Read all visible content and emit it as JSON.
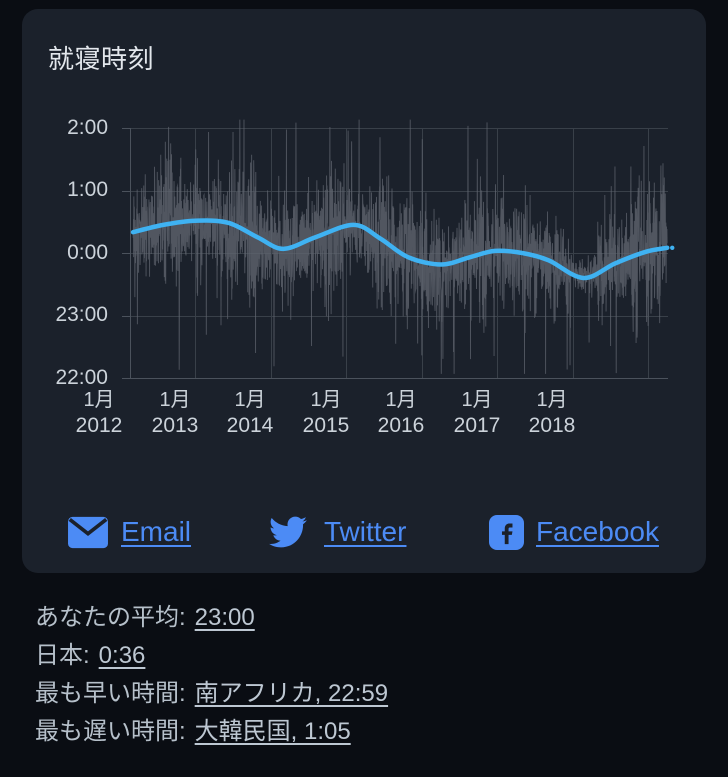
{
  "card": {
    "title": "就寝時刻",
    "share": [
      {
        "id": "email",
        "label": "Email"
      },
      {
        "id": "twitter",
        "label": "Twitter"
      },
      {
        "id": "facebook",
        "label": "Facebook"
      }
    ]
  },
  "stats": [
    {
      "label": "あなたの平均:",
      "value": "23:00"
    },
    {
      "label": "日本:",
      "value": "0:36"
    },
    {
      "label": "最も早い時間:",
      "value": "南アフリカ, 22:59"
    },
    {
      "label": "最も遅い時間:",
      "value": "大韓民国, 1:05"
    }
  ],
  "colors": {
    "page_bg": "#0a0d13",
    "card_bg": "#1b212b",
    "title_text": "#e3e7ec",
    "tick_text": "#ccd3da",
    "gridline": "#394049",
    "axis": "#4b525c",
    "noise": "rgba(96,101,111,0.78)",
    "trend": "#3fb2f2",
    "link_blue": "#4c8bf5",
    "stat_text": "#b6c0ca"
  },
  "chart_data": {
    "type": "line",
    "title": "就寝時刻",
    "xlabel": "",
    "ylabel": "",
    "legend": "none",
    "grid": true,
    "y_tick_labels": [
      "2:00",
      "1:00",
      "0:00",
      "23:00",
      "22:00"
    ],
    "y_tick_minutes": [
      120,
      60,
      0,
      -60,
      -120
    ],
    "y_range_minutes": [
      -120,
      120
    ],
    "x_ticks": [
      {
        "month": "1月",
        "year": "2012"
      },
      {
        "month": "1月",
        "year": "2013"
      },
      {
        "month": "1月",
        "year": "2014"
      },
      {
        "month": "1月",
        "year": "2015"
      },
      {
        "month": "1月",
        "year": "2016"
      },
      {
        "month": "1月",
        "year": "2017"
      },
      {
        "month": "1月",
        "year": "2018"
      }
    ],
    "x_tick_years": [
      2012,
      2013,
      2014,
      2015,
      2016,
      2017,
      2018
    ],
    "x_range": [
      2011.14,
      2018.26
    ],
    "series": [
      {
        "name": "daily-bedtime-noise",
        "style": "jagged-daily"
      },
      {
        "name": "smoothed-trend",
        "style": "smooth-line"
      }
    ],
    "trend_points": [
      [
        2011.18,
        20
      ],
      [
        2011.58,
        27
      ],
      [
        2012.0,
        31
      ],
      [
        2012.44,
        29
      ],
      [
        2012.83,
        15
      ],
      [
        2013.17,
        4
      ],
      [
        2013.59,
        15
      ],
      [
        2014.1,
        27
      ],
      [
        2014.45,
        14
      ],
      [
        2014.82,
        -4
      ],
      [
        2015.26,
        -11
      ],
      [
        2015.64,
        -4
      ],
      [
        2015.97,
        2
      ],
      [
        2016.33,
        0
      ],
      [
        2016.68,
        -7
      ],
      [
        2017.14,
        -24
      ],
      [
        2017.56,
        -10
      ],
      [
        2017.96,
        1
      ],
      [
        2018.25,
        5
      ]
    ],
    "noise": {
      "seed": 1337,
      "points_per_year": 365,
      "amplitude": 85,
      "spike_prob": 0.05,
      "clip": [
        -116,
        128
      ],
      "t_start": 2011.18,
      "t_end": 2018.25,
      "quiet_ranges": [
        [
          2016.98,
          2017.32,
          0.3
        ]
      ]
    }
  }
}
